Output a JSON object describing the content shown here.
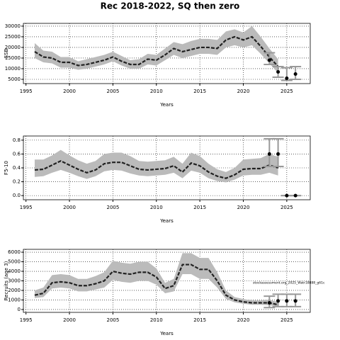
{
  "title": "Rec 2018-2022, SQ then zero",
  "annotation": "stockassessment.org_2025_Watr18888_g61c",
  "chart_data": [
    {
      "type": "line",
      "ylabel": "SSB",
      "xlabel": "Years",
      "x": [
        1996,
        1997,
        1998,
        1999,
        2000,
        2001,
        2002,
        2003,
        2004,
        2005,
        2006,
        2007,
        2008,
        2009,
        2010,
        2011,
        2012,
        2013,
        2014,
        2015,
        2016,
        2017,
        2018,
        2019,
        2020,
        2021,
        2022,
        2023,
        2024
      ],
      "values": [
        18000,
        15500,
        15000,
        13000,
        13000,
        11500,
        12000,
        13000,
        14000,
        15500,
        13500,
        12000,
        12000,
        14500,
        14000,
        16500,
        19500,
        18000,
        19000,
        20000,
        20000,
        19500,
        23500,
        25000,
        23500,
        25000,
        20500,
        15500,
        11000
      ],
      "upper": [
        22000,
        18500,
        18000,
        15500,
        15500,
        13500,
        14500,
        15500,
        16500,
        18000,
        16000,
        14000,
        14500,
        17000,
        16500,
        19500,
        22500,
        21500,
        23000,
        24000,
        24000,
        23500,
        27500,
        28500,
        27000,
        30000,
        25000,
        19500,
        14500
      ],
      "lower": [
        15000,
        13000,
        12500,
        10500,
        10500,
        9500,
        10000,
        11000,
        12000,
        13500,
        11500,
        10000,
        10000,
        12000,
        11500,
        14000,
        16500,
        15000,
        16000,
        17000,
        17000,
        16500,
        20000,
        21000,
        20000,
        21000,
        17000,
        12500,
        8000
      ],
      "points": {
        "x": [
          2023,
          2024,
          2025,
          2026
        ],
        "values": [
          14000,
          8500,
          5500,
          7500
        ],
        "err_low": [
          12000,
          6000,
          4500,
          5000
        ],
        "err_high": [
          17500,
          11000,
          10500,
          11000
        ]
      },
      "xlim": [
        1994.7,
        2027.7
      ],
      "ylim": [
        3000,
        31300
      ],
      "xticks": [
        1995,
        2000,
        2005,
        2010,
        2015,
        2020,
        2025
      ],
      "yticks": [
        5000,
        10000,
        15000,
        20000,
        25000,
        30000
      ],
      "grid": true,
      "color": "#222222",
      "band_color": "#bbbbbb",
      "point_color": "#000000",
      "errbar_color": "#999999"
    },
    {
      "type": "line",
      "ylabel": "F5-10",
      "xlabel": "Years",
      "x": [
        1996,
        1997,
        1998,
        1999,
        2000,
        2001,
        2002,
        2003,
        2004,
        2005,
        2006,
        2007,
        2008,
        2009,
        2010,
        2011,
        2012,
        2013,
        2014,
        2015,
        2016,
        2017,
        2018,
        2019,
        2020,
        2021,
        2022,
        2023,
        2024
      ],
      "values": [
        0.37,
        0.38,
        0.44,
        0.5,
        0.44,
        0.38,
        0.33,
        0.37,
        0.46,
        0.48,
        0.48,
        0.43,
        0.38,
        0.37,
        0.38,
        0.39,
        0.43,
        0.34,
        0.47,
        0.43,
        0.34,
        0.28,
        0.25,
        0.3,
        0.38,
        0.39,
        0.39,
        0.44,
        0.4
      ],
      "upper": [
        0.52,
        0.52,
        0.58,
        0.66,
        0.58,
        0.51,
        0.46,
        0.5,
        0.6,
        0.62,
        0.62,
        0.57,
        0.5,
        0.49,
        0.5,
        0.51,
        0.56,
        0.46,
        0.62,
        0.57,
        0.46,
        0.38,
        0.34,
        0.4,
        0.52,
        0.53,
        0.54,
        0.6,
        0.56
      ],
      "lower": [
        0.27,
        0.28,
        0.33,
        0.37,
        0.33,
        0.28,
        0.24,
        0.28,
        0.35,
        0.37,
        0.36,
        0.32,
        0.29,
        0.28,
        0.29,
        0.3,
        0.33,
        0.25,
        0.36,
        0.33,
        0.25,
        0.21,
        0.19,
        0.23,
        0.29,
        0.3,
        0.3,
        0.33,
        0.29
      ],
      "points": {
        "x": [
          2023,
          2024,
          2025,
          2026
        ],
        "values": [
          0.6,
          0.6,
          0,
          0
        ],
        "err_low": [
          0.42,
          0.42,
          0,
          0
        ],
        "err_high": [
          0.82,
          0.82,
          0,
          0
        ]
      },
      "xlim": [
        1994.7,
        2027.7
      ],
      "ylim": [
        -0.06,
        0.86
      ],
      "xticks": [
        1995,
        2000,
        2005,
        2010,
        2015,
        2020,
        2025
      ],
      "yticks": [
        {
          "value": 0,
          "label": "0.0"
        },
        0.2,
        0.4,
        0.6,
        0.8
      ],
      "grid": true,
      "color": "#222222",
      "band_color": "#bbbbbb",
      "point_color": "#000000",
      "errbar_color": "#999999"
    },
    {
      "type": "line",
      "ylabel": "Recruits (age 3)",
      "xlabel": "Years",
      "x": [
        1996,
        1997,
        1998,
        1999,
        2000,
        2001,
        2002,
        2003,
        2004,
        2005,
        2006,
        2007,
        2008,
        2009,
        2010,
        2011,
        2012,
        2013,
        2014,
        2015,
        2016,
        2017,
        2018,
        2019,
        2020,
        2021,
        2022,
        2023,
        2024
      ],
      "values": [
        1500,
        1700,
        2800,
        2900,
        2800,
        2500,
        2500,
        2700,
        3000,
        4000,
        3800,
        3700,
        3900,
        3900,
        3400,
        2200,
        2500,
        4700,
        4700,
        4200,
        4200,
        3000,
        1500,
        1000,
        800,
        700,
        700,
        700,
        500
      ],
      "upper": [
        2000,
        2300,
        3600,
        3700,
        3600,
        3200,
        3200,
        3500,
        3900,
        5100,
        4900,
        4800,
        5000,
        5000,
        4300,
        2800,
        3200,
        5900,
        5900,
        5400,
        5400,
        3900,
        2000,
        1300,
        1100,
        950,
        950,
        1000,
        800
      ],
      "lower": [
        1200,
        1300,
        2200,
        2300,
        2200,
        1900,
        1900,
        2100,
        2300,
        3100,
        2900,
        2800,
        3000,
        3000,
        2600,
        1700,
        1900,
        3700,
        3700,
        3200,
        3200,
        2300,
        1100,
        750,
        600,
        500,
        500,
        450,
        300
      ],
      "points": {
        "x": [
          2023,
          2024,
          2025,
          2026
        ],
        "values": [
          700,
          900,
          900,
          900
        ],
        "err_low": [
          200,
          300,
          300,
          300
        ],
        "err_high": [
          1400,
          1600,
          1600,
          1600
        ]
      },
      "xlim": [
        1994.7,
        2027.7
      ],
      "ylim": [
        -300,
        6300
      ],
      "xticks": [
        1995,
        2000,
        2005,
        2010,
        2015,
        2020,
        2025
      ],
      "yticks": [
        0,
        1000,
        2000,
        3000,
        4000,
        5000,
        6000
      ],
      "grid": true,
      "color": "#222222",
      "band_color": "#bbbbbb",
      "point_color": "#000000",
      "errbar_color": "#999999"
    }
  ]
}
